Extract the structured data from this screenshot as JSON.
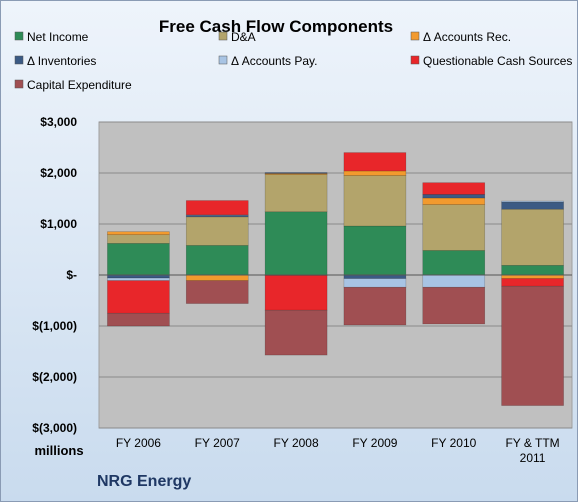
{
  "chart_data": {
    "type": "bar",
    "stacked": true,
    "title": "Free Cash Flow Components",
    "company": "NRG Energy",
    "ylabel": "millions",
    "ylim": [
      -3000,
      3000
    ],
    "yticks": [
      3000,
      2000,
      1000,
      0,
      -1000,
      -2000,
      -3000
    ],
    "ytick_labels": [
      "$3,000",
      "$2,000",
      "$1,000",
      "$-",
      "$(1,000)",
      "$(2,000)",
      "$(3,000)"
    ],
    "categories": [
      "FY 2006",
      "FY 2007",
      "FY 2008",
      "FY 2009",
      "FY 2010",
      "FY & TTM 2011"
    ],
    "grid": true,
    "legend_position": "top",
    "series": [
      {
        "name": "Net Income",
        "color": "#2e8b57",
        "values": [
          620,
          580,
          1240,
          960,
          480,
          190
        ]
      },
      {
        "name": "D&A",
        "color": "#b3a46b",
        "values": [
          170,
          560,
          730,
          990,
          900,
          1100
        ]
      },
      {
        "name": "Δ Accounts Rec.",
        "color": "#f29a2e",
        "values": [
          60,
          -110,
          20,
          90,
          130,
          -70
        ]
      },
      {
        "name": "Δ Inventories",
        "color": "#3b5a84",
        "values": [
          -60,
          30,
          20,
          -70,
          70,
          140
        ]
      },
      {
        "name": "Δ Accounts Pay.",
        "color": "#a8c4e4",
        "values": [
          -50,
          10,
          -10,
          -170,
          -240,
          20
        ]
      },
      {
        "name": "Questionable Cash Sources",
        "color": "#e8262a",
        "values": [
          -640,
          280,
          -680,
          360,
          230,
          -150
        ]
      },
      {
        "name": "Capital Expenditure",
        "color": "#a04f52",
        "values": [
          -250,
          -450,
          -880,
          -740,
          -720,
          -2340
        ]
      }
    ]
  }
}
